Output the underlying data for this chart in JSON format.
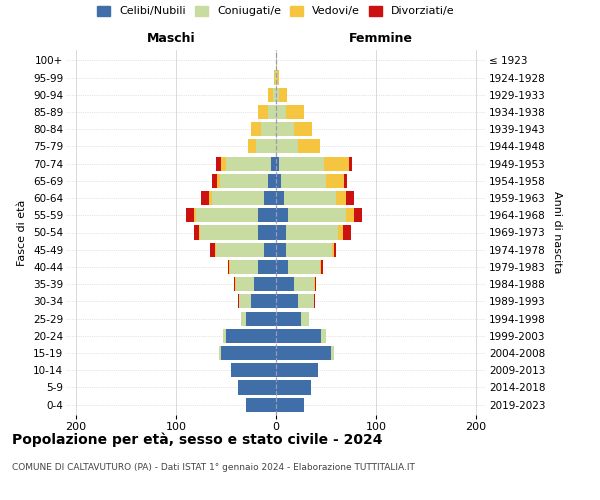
{
  "age_groups": [
    "0-4",
    "5-9",
    "10-14",
    "15-19",
    "20-24",
    "25-29",
    "30-34",
    "35-39",
    "40-44",
    "45-49",
    "50-54",
    "55-59",
    "60-64",
    "65-69",
    "70-74",
    "75-79",
    "80-84",
    "85-89",
    "90-94",
    "95-99",
    "100+"
  ],
  "birth_years": [
    "2019-2023",
    "2014-2018",
    "2009-2013",
    "2004-2008",
    "1999-2003",
    "1994-1998",
    "1989-1993",
    "1984-1988",
    "1979-1983",
    "1974-1978",
    "1969-1973",
    "1964-1968",
    "1959-1963",
    "1954-1958",
    "1949-1953",
    "1944-1948",
    "1939-1943",
    "1934-1938",
    "1929-1933",
    "1924-1928",
    "≤ 1923"
  ],
  "maschi": {
    "celibi": [
      30,
      38,
      45,
      55,
      50,
      30,
      25,
      22,
      18,
      12,
      18,
      18,
      12,
      8,
      5,
      0,
      0,
      0,
      0,
      0,
      0
    ],
    "coniugati": [
      0,
      0,
      0,
      2,
      3,
      5,
      12,
      18,
      28,
      48,
      58,
      62,
      52,
      48,
      45,
      20,
      15,
      8,
      3,
      1,
      0
    ],
    "vedovi": [
      0,
      0,
      0,
      0,
      0,
      0,
      0,
      1,
      1,
      1,
      1,
      2,
      3,
      3,
      5,
      8,
      10,
      10,
      5,
      1,
      0
    ],
    "divorziati": [
      0,
      0,
      0,
      0,
      0,
      0,
      1,
      1,
      1,
      5,
      5,
      8,
      8,
      5,
      5,
      0,
      0,
      0,
      0,
      0,
      0
    ]
  },
  "femmine": {
    "nubili": [
      28,
      35,
      42,
      55,
      45,
      25,
      22,
      18,
      12,
      10,
      10,
      12,
      8,
      5,
      3,
      0,
      0,
      0,
      0,
      0,
      0
    ],
    "coniugate": [
      0,
      0,
      0,
      3,
      5,
      8,
      16,
      20,
      32,
      46,
      52,
      58,
      52,
      45,
      45,
      22,
      18,
      10,
      3,
      1,
      0
    ],
    "vedove": [
      0,
      0,
      0,
      0,
      0,
      0,
      0,
      1,
      1,
      2,
      5,
      8,
      10,
      18,
      25,
      22,
      18,
      18,
      8,
      2,
      1
    ],
    "divorziate": [
      0,
      0,
      0,
      0,
      0,
      0,
      1,
      1,
      2,
      2,
      8,
      8,
      8,
      3,
      3,
      0,
      0,
      0,
      0,
      0,
      0
    ]
  },
  "colors": {
    "celibi_nubili": "#3f6ea8",
    "coniugati": "#c8dba0",
    "vedovi": "#f5c540",
    "divorziati": "#cc1111"
  },
  "title": "Popolazione per età, sesso e stato civile - 2024",
  "subtitle": "COMUNE DI CALTAVUTURO (PA) - Dati ISTAT 1° gennaio 2024 - Elaborazione TUTTITALIA.IT",
  "header_left": "Maschi",
  "header_right": "Femmine",
  "ylabel_left": "Fasce di età",
  "ylabel_right": "Anni di nascita",
  "xlim": 210,
  "xticks": [
    -200,
    -100,
    0,
    100,
    200
  ],
  "legend_labels": [
    "Celibi/Nubili",
    "Coniugati/e",
    "Vedovi/e",
    "Divorziati/e"
  ]
}
